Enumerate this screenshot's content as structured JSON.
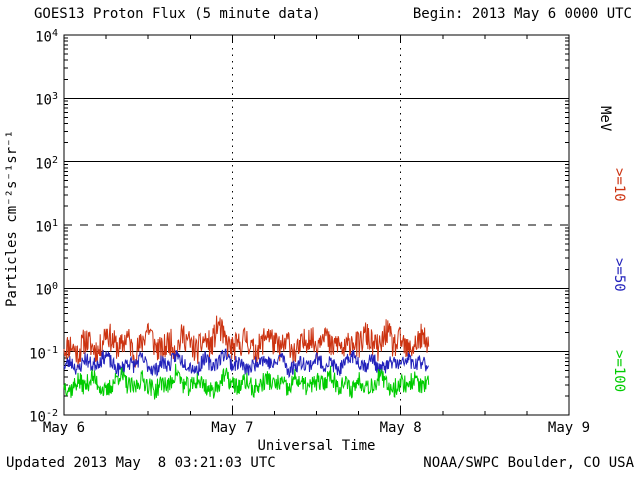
{
  "chart_data": {
    "type": "line",
    "title": "GOES13 Proton Flux (5 minute data)",
    "begin_label": "Begin: 2013 May 6 0000 UTC",
    "xlabel": "Universal Time",
    "ylabel": "Particles cm⁻²s⁻¹sr⁻¹",
    "y_scale": "log",
    "ylim": [
      0.01,
      10000
    ],
    "y_tick_exponents": [
      4,
      3,
      2,
      1,
      0,
      -1,
      -2
    ],
    "solid_gridline_exponents": [
      3,
      2,
      0,
      -1
    ],
    "dashed_gridline_exponents": [
      1
    ],
    "x_range_days": 3,
    "x_tick_labels": [
      "May 6",
      "May 7",
      "May 8",
      "May 9"
    ],
    "day_boundary_lines_days": [
      1,
      2
    ],
    "axis_color": "#000000",
    "right_axis_labels": [
      {
        "text": "MeV",
        "color": "#000000"
      },
      {
        "text": ">=10",
        "color": "#cc3311"
      },
      {
        "text": ">=50",
        "color": "#2222bb"
      },
      {
        "text": ">=100",
        "color": "#00cc00"
      }
    ],
    "series": [
      {
        "name": ">=10 MeV",
        "threshold_mev": 10,
        "color": "#cc3311",
        "start_day": 0,
        "step_hours": 1,
        "noise_log10": 0.22,
        "seed": 11,
        "approx_band": [
          0.07,
          0.35
        ],
        "values": [
          0.11,
          0.13,
          0.09,
          0.16,
          0.12,
          0.1,
          0.22,
          0.14,
          0.11,
          0.18,
          0.09,
          0.13,
          0.25,
          0.12,
          0.1,
          0.15,
          0.11,
          0.19,
          0.13,
          0.1,
          0.16,
          0.12,
          0.28,
          0.14,
          0.11,
          0.13,
          0.17,
          0.1,
          0.12,
          0.21,
          0.13,
          0.11,
          0.15,
          0.09,
          0.13,
          0.18,
          0.12,
          0.24,
          0.11,
          0.14,
          0.1,
          0.16,
          0.12,
          0.19,
          0.13,
          0.11,
          0.22,
          0.12,
          0.15,
          0.1,
          0.13,
          0.17,
          0.12
        ]
      },
      {
        "name": ">=50 MeV",
        "threshold_mev": 50,
        "color": "#2222bb",
        "start_day": 0,
        "step_hours": 1,
        "noise_log10": 0.12,
        "seed": 23,
        "approx_band": [
          0.04,
          0.12
        ],
        "values": [
          0.06,
          0.07,
          0.05,
          0.08,
          0.06,
          0.07,
          0.09,
          0.06,
          0.05,
          0.07,
          0.06,
          0.08,
          0.06,
          0.05,
          0.07,
          0.06,
          0.09,
          0.07,
          0.06,
          0.05,
          0.08,
          0.06,
          0.07,
          0.1,
          0.06,
          0.07,
          0.05,
          0.06,
          0.08,
          0.07,
          0.06,
          0.09,
          0.05,
          0.06,
          0.07,
          0.06,
          0.08,
          0.06,
          0.07,
          0.05,
          0.06,
          0.09,
          0.07,
          0.06,
          0.08,
          0.05,
          0.06,
          0.07,
          0.06,
          0.08,
          0.06,
          0.07,
          0.06
        ]
      },
      {
        "name": ">=100 MeV",
        "threshold_mev": 100,
        "color": "#00cc00",
        "start_day": 0,
        "step_hours": 1,
        "noise_log10": 0.15,
        "seed": 37,
        "approx_band": [
          0.018,
          0.06
        ],
        "values": [
          0.03,
          0.025,
          0.035,
          0.028,
          0.04,
          0.03,
          0.022,
          0.032,
          0.045,
          0.03,
          0.026,
          0.038,
          0.03,
          0.024,
          0.033,
          0.028,
          0.05,
          0.03,
          0.027,
          0.036,
          0.03,
          0.023,
          0.031,
          0.042,
          0.03,
          0.028,
          0.035,
          0.025,
          0.03,
          0.038,
          0.029,
          0.033,
          0.024,
          0.04,
          0.03,
          0.027,
          0.034,
          0.03,
          0.046,
          0.028,
          0.032,
          0.025,
          0.036,
          0.03,
          0.029,
          0.041,
          0.03,
          0.026,
          0.033,
          0.03,
          0.037,
          0.028,
          0.03
        ]
      }
    ],
    "footer": {
      "updated": "Updated 2013 May  8 03:21:03 UTC",
      "source": "NOAA/SWPC Boulder, CO USA"
    }
  }
}
